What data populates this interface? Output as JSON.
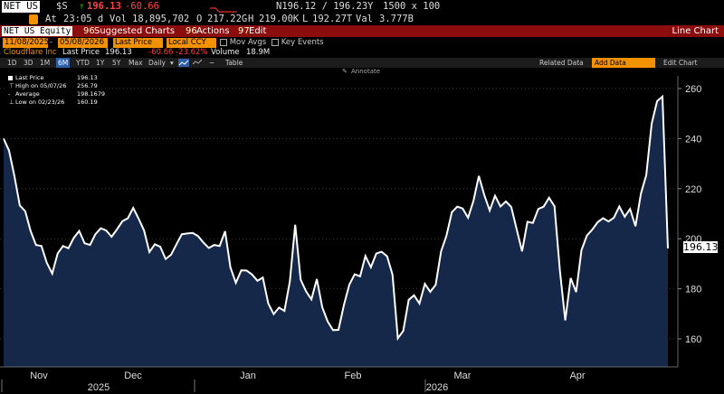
{
  "quote": {
    "ticker": "NET US",
    "currency": "$S",
    "arrow": "↑",
    "last": "196.13",
    "change": "-60.66",
    "bid_ask": "N196.12 / 196.23Y",
    "size": "1500 x 100",
    "at_label": "At",
    "time": "23:05 d",
    "vol_label": "Vol",
    "volume": "18,895,702",
    "open_label": "O",
    "open": "217.22G",
    "high_label": "H",
    "high": "219.00K",
    "low_label": "L",
    "low": "192.27T",
    "val_label": "Val",
    "value": "3.777B"
  },
  "function_bar": {
    "security": "NET US Equity",
    "suggested": "Suggested Charts",
    "suggested_num": "96",
    "actions": "Actions",
    "actions_num": "96",
    "edit": "Edit",
    "edit_num": "97",
    "title": "Line Chart"
  },
  "settings": {
    "start_date": "11/08/2025",
    "end_date": "05/08/2026",
    "field": "Last Price",
    "currency": "Local CCY",
    "mov_avgs": "Mov Avgs",
    "key_events": "Key Events"
  },
  "info_line": {
    "company": "Cloudflare Inc",
    "field": "Last Price",
    "last": "196.13",
    "change": "-60.66",
    "pct": "-23.62%",
    "volume_label": "Volume",
    "volume": "18.9M"
  },
  "toolbar": {
    "periods": [
      "1D",
      "3D",
      "1M",
      "6M",
      "YTD",
      "1Y",
      "5Y",
      "Max"
    ],
    "selected": "6M",
    "frequency": "Daily",
    "table": "Table",
    "related": "Related Data",
    "add_data": "Add Data",
    "edit_chart": "Edit Chart",
    "annotate": "Annotate"
  },
  "legend": [
    {
      "label": "Last Price",
      "value": "196.13"
    },
    {
      "label": "High on 05/07/26",
      "value": "256.79"
    },
    {
      "label": "Average",
      "value": "198.1679"
    },
    {
      "label": "Low on 02/23/26",
      "value": "160.19"
    }
  ],
  "colors": {
    "up": "#00c000",
    "down": "#ff3333",
    "orange": "#f39200",
    "bar": "#8b0d0d",
    "area": "#16284a"
  },
  "chart_data": {
    "type": "area",
    "series": [
      {
        "name": "Last Price",
        "values": [
          240.0,
          235.2,
          225.1,
          213.3,
          211.0,
          203.1,
          197.5,
          197.1,
          190.4,
          186.1,
          194.1,
          197.1,
          196.2,
          200.4,
          203.1,
          198.2,
          197.5,
          201.8,
          204.2,
          203.3,
          200.8,
          203.8,
          207.0,
          208.2,
          212.3,
          208.0,
          203.3,
          194.7,
          197.8,
          196.8,
          191.9,
          193.6,
          197.8,
          201.8,
          202.1,
          202.3,
          201.1,
          198.5,
          196.3,
          197.5,
          197.1,
          203.0,
          188.6,
          182.4,
          187.4,
          187.3,
          185.7,
          183.2,
          184.5,
          174.2,
          169.9,
          172.5,
          171.2,
          183.0,
          205.6,
          183.7,
          179.0,
          175.8,
          183.9,
          172.6,
          167.0,
          163.5,
          163.6,
          173.5,
          181.6,
          185.8,
          185.0,
          193.1,
          188.6,
          194.1,
          194.8,
          193.0,
          185.7,
          160.2,
          163.2,
          175.6,
          177.4,
          174.1,
          182.0,
          178.8,
          181.6,
          195.0,
          201.2,
          210.6,
          212.8,
          212.1,
          208.4,
          215.2,
          225.1,
          217.5,
          211.3,
          217.2,
          212.9,
          214.9,
          212.7,
          203.8,
          195.0,
          206.8,
          206.3,
          211.9,
          212.8,
          216.4,
          213.0,
          187.2,
          167.4,
          184.3,
          178.7,
          195.4,
          201.3,
          203.7,
          206.6,
          208.2,
          206.9,
          208.4,
          212.9,
          208.8,
          211.9,
          205.0,
          218.0,
          225.4,
          246.0,
          255.0,
          256.8,
          196.13
        ]
      }
    ],
    "x_labels": [
      "Nov",
      "Dec",
      "Jan",
      "Feb",
      "Mar",
      "Apr"
    ],
    "year_labels": [
      "2025",
      "2026"
    ],
    "y_ticks": [
      160,
      180,
      200,
      220,
      240,
      260
    ],
    "ylim": [
      150,
      265
    ],
    "last_label": "196.13",
    "grid": true
  }
}
